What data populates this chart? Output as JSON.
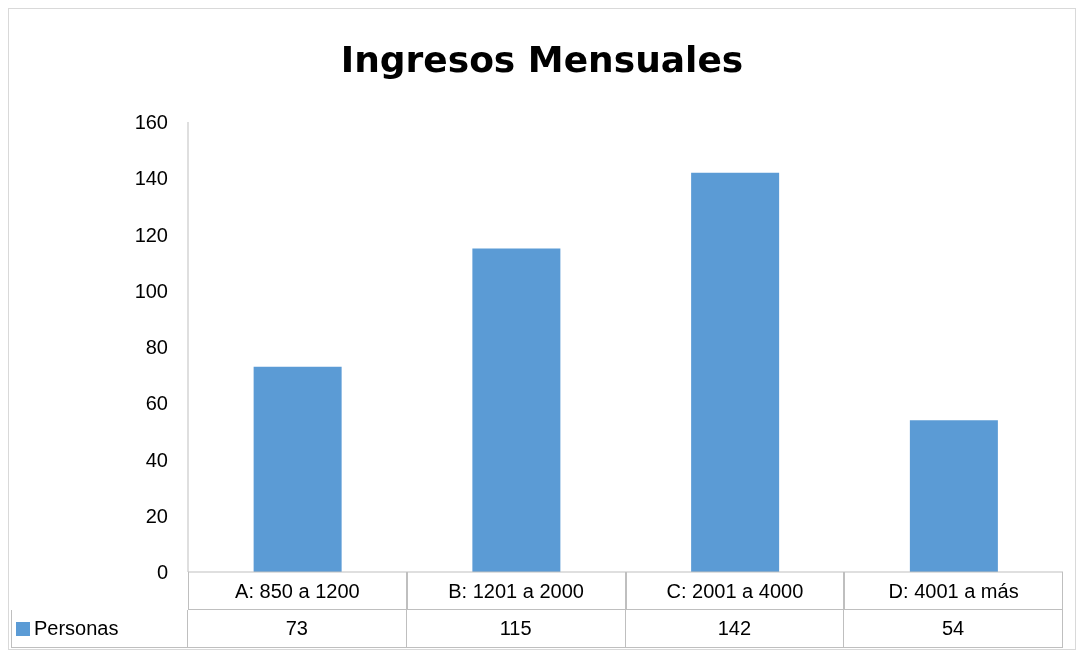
{
  "chart_data": {
    "type": "bar",
    "title": "Ingresos Mensuales",
    "categories": [
      "A: 850 a 1200",
      "B: 1201 a 2000",
      "C: 2001 a 4000",
      "D: 4001 a más"
    ],
    "series": [
      {
        "name": "Personas",
        "color": "#5b9bd5",
        "values": [
          73,
          115,
          142,
          54
        ]
      }
    ],
    "ylim": [
      0,
      160
    ],
    "yticks": [
      0,
      20,
      40,
      60,
      80,
      100,
      120,
      140,
      160
    ],
    "grid": false,
    "legend": "bottom",
    "data_labels": true
  }
}
